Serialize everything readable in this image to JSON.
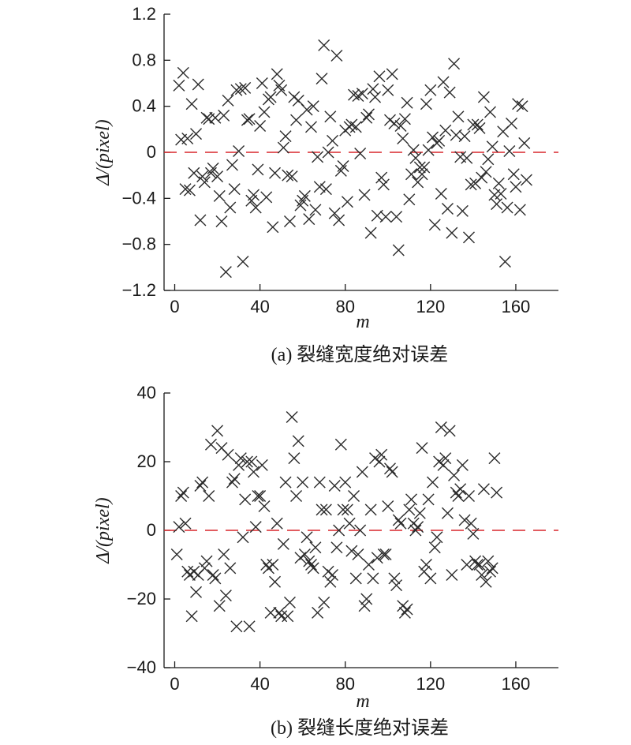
{
  "chart_data": [
    {
      "type": "scatter",
      "caption": "(a) 裂缝宽度绝对误差",
      "xlabel": "m",
      "ylabel": "Δ/(pixel)",
      "xlim": [
        -5,
        180
      ],
      "ylim": [
        -1.2,
        1.2
      ],
      "xticks": [
        0,
        40,
        80,
        120,
        160
      ],
      "xtick_labels": [
        "0",
        "40",
        "80",
        "120",
        "160"
      ],
      "yticks": [
        -1.2,
        -0.8,
        -0.4,
        0,
        0.4,
        0.8,
        1.2
      ],
      "ytick_labels": [
        "−1.2",
        "−0.8",
        "−0.4",
        "0",
        "0.4",
        "0.8",
        "1.2"
      ],
      "reference_line": {
        "y": 0,
        "style": "dashed",
        "color": "#d9262b"
      },
      "marker": "x",
      "marker_color": "#2b2b2b",
      "points": [
        [
          2,
          0.58
        ],
        [
          3,
          0.11
        ],
        [
          4,
          0.69
        ],
        [
          5,
          -0.32
        ],
        [
          6,
          0.12
        ],
        [
          7,
          -0.33
        ],
        [
          8,
          0.42
        ],
        [
          9,
          -0.18
        ],
        [
          10,
          0.16
        ],
        [
          11,
          0.59
        ],
        [
          12,
          -0.59
        ],
        [
          13,
          -0.21
        ],
        [
          14,
          -0.26
        ],
        [
          15,
          0.3
        ],
        [
          16,
          0.29
        ],
        [
          17,
          -0.18
        ],
        [
          18,
          -0.14
        ],
        [
          19,
          0.3
        ],
        [
          20,
          -0.21
        ],
        [
          21,
          -0.38
        ],
        [
          22,
          -0.6
        ],
        [
          23,
          0.32
        ],
        [
          24,
          -1.04
        ],
        [
          25,
          0.45
        ],
        [
          26,
          -0.48
        ],
        [
          27,
          -0.11
        ],
        [
          28,
          -0.32
        ],
        [
          29,
          0.54
        ],
        [
          30,
          0.01
        ],
        [
          31,
          0.55
        ],
        [
          32,
          -0.95
        ],
        [
          33,
          0.56
        ],
        [
          34,
          0.28
        ],
        [
          35,
          0.29
        ],
        [
          36,
          -0.42
        ],
        [
          37,
          -0.37
        ],
        [
          38,
          -0.48
        ],
        [
          39,
          -0.15
        ],
        [
          40,
          0.23
        ],
        [
          41,
          0.6
        ],
        [
          42,
          0.35
        ],
        [
          43,
          -0.39
        ],
        [
          44,
          0.46
        ],
        [
          45,
          0.48
        ],
        [
          46,
          -0.65
        ],
        [
          47,
          -0.18
        ],
        [
          48,
          0.68
        ],
        [
          49,
          0.58
        ],
        [
          50,
          0.54
        ],
        [
          51,
          0.04
        ],
        [
          52,
          0.14
        ],
        [
          53,
          -0.2
        ],
        [
          54,
          -0.6
        ],
        [
          55,
          -0.21
        ],
        [
          56,
          0.48
        ],
        [
          57,
          0.28
        ],
        [
          58,
          0.45
        ],
        [
          59,
          -0.46
        ],
        [
          60,
          -0.42
        ],
        [
          61,
          -0.38
        ],
        [
          62,
          0.37
        ],
        [
          63,
          -0.58
        ],
        [
          64,
          0.22
        ],
        [
          65,
          0.4
        ],
        [
          66,
          -0.5
        ],
        [
          67,
          -0.04
        ],
        [
          68,
          -0.3
        ],
        [
          69,
          0.64
        ],
        [
          70,
          0.93
        ],
        [
          71,
          -0.32
        ],
        [
          72,
          0.0
        ],
        [
          73,
          0.31
        ],
        [
          74,
          0.1
        ],
        [
          75,
          -0.53
        ],
        [
          76,
          0.84
        ],
        [
          77,
          -0.59
        ],
        [
          78,
          -0.16
        ],
        [
          79,
          -0.12
        ],
        [
          80,
          0.19
        ],
        [
          81,
          -0.43
        ],
        [
          82,
          0.22
        ],
        [
          83,
          0.24
        ],
        [
          84,
          0.5
        ],
        [
          85,
          0.22
        ],
        [
          86,
          0.49
        ],
        [
          87,
          -0.01
        ],
        [
          88,
          0.51
        ],
        [
          89,
          -0.37
        ],
        [
          90,
          0.3
        ],
        [
          91,
          0.33
        ],
        [
          92,
          -0.7
        ],
        [
          93,
          0.55
        ],
        [
          94,
          0.48
        ],
        [
          95,
          -0.55
        ],
        [
          96,
          0.66
        ],
        [
          97,
          -0.22
        ],
        [
          98,
          -0.28
        ],
        [
          99,
          -0.56
        ],
        [
          100,
          0.54
        ],
        [
          101,
          0.28
        ],
        [
          102,
          0.68
        ],
        [
          103,
          0.25
        ],
        [
          104,
          -0.56
        ],
        [
          105,
          -0.85
        ],
        [
          106,
          0.23
        ],
        [
          107,
          0.12
        ],
        [
          108,
          0.29
        ],
        [
          109,
          0.43
        ],
        [
          110,
          -0.41
        ],
        [
          111,
          -0.19
        ],
        [
          112,
          0.02
        ],
        [
          113,
          -0.05
        ],
        [
          114,
          -0.26
        ],
        [
          115,
          -0.13
        ],
        [
          116,
          -0.19
        ],
        [
          117,
          -0.13
        ],
        [
          118,
          0.42
        ],
        [
          119,
          0.02
        ],
        [
          120,
          0.54
        ],
        [
          121,
          0.13
        ],
        [
          122,
          -0.63
        ],
        [
          123,
          0.08
        ],
        [
          124,
          0.1
        ],
        [
          125,
          -0.36
        ],
        [
          126,
          0.61
        ],
        [
          127,
          0.19
        ],
        [
          128,
          -0.49
        ],
        [
          129,
          0.52
        ],
        [
          130,
          -0.7
        ],
        [
          131,
          0.77
        ],
        [
          132,
          0.15
        ],
        [
          133,
          0.31
        ],
        [
          134,
          -0.04
        ],
        [
          135,
          -0.51
        ],
        [
          136,
          0.14
        ],
        [
          137,
          -0.05
        ],
        [
          138,
          -0.74
        ],
        [
          139,
          -0.28
        ],
        [
          140,
          0.24
        ],
        [
          141,
          -0.27
        ],
        [
          142,
          0.24
        ],
        [
          143,
          0.21
        ],
        [
          144,
          -0.22
        ],
        [
          145,
          0.48
        ],
        [
          146,
          -0.17
        ],
        [
          147,
          -0.06
        ],
        [
          148,
          0.35
        ],
        [
          149,
          0.05
        ],
        [
          150,
          -0.37
        ],
        [
          151,
          -0.45
        ],
        [
          152,
          -0.27
        ],
        [
          153,
          -0.36
        ],
        [
          154,
          0.18
        ],
        [
          155,
          -0.95
        ],
        [
          156,
          -0.48
        ],
        [
          157,
          0.01
        ],
        [
          158,
          0.25
        ],
        [
          159,
          -0.19
        ],
        [
          160,
          -0.3
        ],
        [
          161,
          0.42
        ],
        [
          162,
          -0.5
        ],
        [
          163,
          0.4
        ],
        [
          164,
          0.08
        ],
        [
          165,
          -0.24
        ]
      ]
    },
    {
      "type": "scatter",
      "caption": "(b) 裂缝长度绝对误差",
      "xlabel": "m",
      "ylabel": "Δ/(pixel)",
      "xlim": [
        -5,
        180
      ],
      "ylim": [
        -40,
        40
      ],
      "xticks": [
        0,
        40,
        80,
        120,
        160
      ],
      "xtick_labels": [
        "0",
        "40",
        "80",
        "120",
        "160"
      ],
      "yticks": [
        -40,
        -20,
        0,
        20,
        40
      ],
      "ytick_labels": [
        "−40",
        "−20",
        "0",
        "20",
        "40"
      ],
      "reference_line": {
        "y": 0,
        "style": "dashed",
        "color": "#d9262b"
      },
      "marker": "x",
      "marker_color": "#2b2b2b",
      "points": [
        [
          1,
          -7
        ],
        [
          2,
          1
        ],
        [
          3,
          10
        ],
        [
          4,
          11
        ],
        [
          5,
          2
        ],
        [
          6,
          -12
        ],
        [
          7,
          -13
        ],
        [
          8,
          -25
        ],
        [
          9,
          -12
        ],
        [
          10,
          -18
        ],
        [
          11,
          -13
        ],
        [
          12,
          13
        ],
        [
          13,
          14
        ],
        [
          14,
          -11
        ],
        [
          15,
          -9
        ],
        [
          16,
          10
        ],
        [
          17,
          25
        ],
        [
          18,
          -13
        ],
        [
          19,
          -14
        ],
        [
          20,
          29
        ],
        [
          21,
          -22
        ],
        [
          22,
          24
        ],
        [
          23,
          -7
        ],
        [
          24,
          -19
        ],
        [
          25,
          22
        ],
        [
          26,
          -11
        ],
        [
          27,
          14
        ],
        [
          28,
          15
        ],
        [
          29,
          -28
        ],
        [
          30,
          19
        ],
        [
          31,
          21
        ],
        [
          32,
          -2
        ],
        [
          33,
          9
        ],
        [
          34,
          20
        ],
        [
          35,
          -28
        ],
        [
          36,
          20
        ],
        [
          37,
          17
        ],
        [
          38,
          1
        ],
        [
          39,
          10
        ],
        [
          40,
          10
        ],
        [
          41,
          19
        ],
        [
          42,
          7
        ],
        [
          43,
          -10
        ],
        [
          44,
          -11
        ],
        [
          45,
          -24
        ],
        [
          46,
          -10
        ],
        [
          47,
          -15
        ],
        [
          48,
          2
        ],
        [
          49,
          -24
        ],
        [
          50,
          -25
        ],
        [
          51,
          -4
        ],
        [
          52,
          14
        ],
        [
          53,
          -25
        ],
        [
          54,
          -21
        ],
        [
          55,
          33
        ],
        [
          56,
          21
        ],
        [
          57,
          10
        ],
        [
          58,
          26
        ],
        [
          59,
          -8
        ],
        [
          60,
          14
        ],
        [
          61,
          -7
        ],
        [
          62,
          -2
        ],
        [
          63,
          -9
        ],
        [
          64,
          -10
        ],
        [
          65,
          -11
        ],
        [
          66,
          -5
        ],
        [
          67,
          -24
        ],
        [
          68,
          14
        ],
        [
          69,
          6
        ],
        [
          70,
          -21
        ],
        [
          71,
          6
        ],
        [
          72,
          -12
        ],
        [
          73,
          -15
        ],
        [
          74,
          -13
        ],
        [
          75,
          13
        ],
        [
          76,
          -5
        ],
        [
          77,
          0
        ],
        [
          78,
          25
        ],
        [
          79,
          6
        ],
        [
          80,
          14
        ],
        [
          81,
          6
        ],
        [
          82,
          2
        ],
        [
          83,
          -6
        ],
        [
          84,
          10
        ],
        [
          85,
          -14
        ],
        [
          86,
          -7
        ],
        [
          87,
          0
        ],
        [
          88,
          17
        ],
        [
          89,
          -22
        ],
        [
          90,
          -20
        ],
        [
          91,
          -10
        ],
        [
          92,
          6
        ],
        [
          93,
          -14
        ],
        [
          94,
          21
        ],
        [
          95,
          -8
        ],
        [
          96,
          20
        ],
        [
          97,
          22
        ],
        [
          98,
          -7
        ],
        [
          99,
          -7
        ],
        [
          100,
          7
        ],
        [
          101,
          18
        ],
        [
          102,
          17
        ],
        [
          103,
          -14
        ],
        [
          104,
          -16
        ],
        [
          105,
          3
        ],
        [
          106,
          2
        ],
        [
          107,
          -22
        ],
        [
          108,
          -24
        ],
        [
          109,
          -23
        ],
        [
          110,
          6
        ],
        [
          111,
          9
        ],
        [
          112,
          2
        ],
        [
          113,
          0
        ],
        [
          114,
          1
        ],
        [
          115,
          5
        ],
        [
          116,
          24
        ],
        [
          117,
          -12
        ],
        [
          118,
          -10
        ],
        [
          119,
          9
        ],
        [
          120,
          -14
        ],
        [
          121,
          14
        ],
        [
          122,
          -5
        ],
        [
          123,
          -2
        ],
        [
          124,
          20
        ],
        [
          125,
          30
        ],
        [
          126,
          19
        ],
        [
          127,
          21
        ],
        [
          128,
          5
        ],
        [
          129,
          29
        ],
        [
          130,
          -13
        ],
        [
          131,
          16
        ],
        [
          132,
          11
        ],
        [
          133,
          10
        ],
        [
          134,
          12
        ],
        [
          135,
          19
        ],
        [
          136,
          3
        ],
        [
          137,
          -10
        ],
        [
          138,
          10
        ],
        [
          139,
          2
        ],
        [
          140,
          -1
        ],
        [
          141,
          -9
        ],
        [
          142,
          -10
        ],
        [
          143,
          -10
        ],
        [
          144,
          -13
        ],
        [
          145,
          12
        ],
        [
          146,
          -15
        ],
        [
          147,
          -9
        ],
        [
          148,
          -12
        ],
        [
          149,
          -11
        ],
        [
          150,
          21
        ],
        [
          151,
          11
        ]
      ]
    }
  ]
}
